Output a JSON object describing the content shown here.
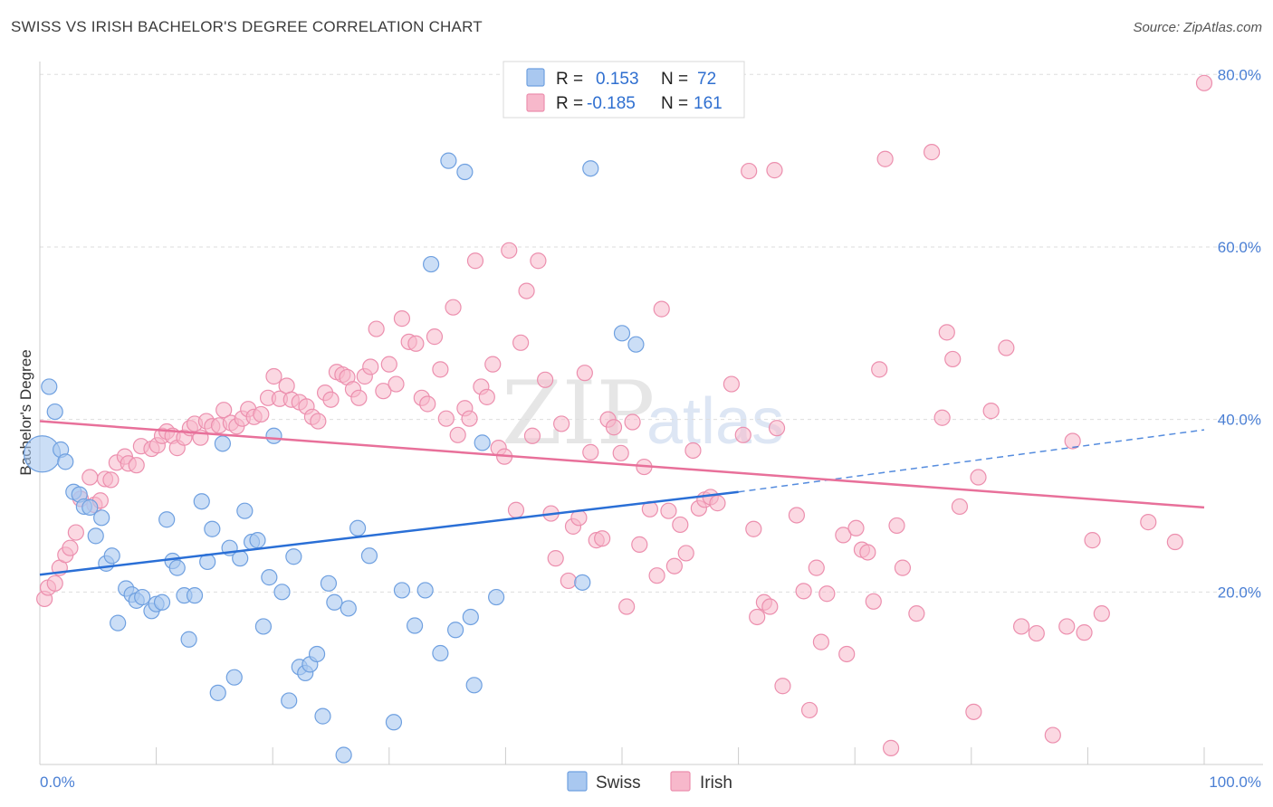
{
  "header": {
    "title": "SWISS VS IRISH BACHELOR'S DEGREE CORRELATION CHART",
    "source": "Source: ZipAtlas.com"
  },
  "watermark": {
    "zip": "ZIP",
    "atlas": "atlas"
  },
  "legend": {
    "r_label": "R =",
    "n_label": "N =",
    "entries": [
      {
        "series": "Swiss",
        "r": "0.153",
        "n": "72"
      },
      {
        "series": "Irish",
        "r": "-0.185",
        "n": "161"
      }
    ]
  },
  "colors": {
    "swiss_fill": "#a9c8f0",
    "swiss_stroke": "#6fa0e0",
    "swiss_line": "#2a6fd6",
    "irish_fill": "#f7b8cb",
    "irish_stroke": "#ec8fae",
    "irish_line": "#e8709a",
    "tick_text": "#4a7fd4",
    "grid": "#dddddd"
  },
  "chart_data": {
    "type": "scatter",
    "title": "SWISS VS IRISH BACHELOR'S DEGREE CORRELATION CHART",
    "xlabel": "",
    "ylabel": "Bachelor's Degree",
    "xlim": [
      0,
      100
    ],
    "ylim": [
      0,
      81.5
    ],
    "x_tick_labels": [
      "0.0%",
      "100.0%"
    ],
    "y_ticks": [
      20,
      40,
      60,
      80
    ],
    "y_tick_labels": [
      "20.0%",
      "40.0%",
      "60.0%",
      "80.0%"
    ],
    "grid": true,
    "legend_position": "top-center",
    "series": [
      {
        "name": "Swiss",
        "r": 0.153,
        "n": 72,
        "trend": {
          "x0": 0,
          "y0": 22.0,
          "x1": 60,
          "y1": 31.6,
          "dashed_to_x": 100,
          "dashed_to_y": 38.8
        },
        "points": [
          [
            0.2,
            36.0,
            3
          ],
          [
            0.8,
            43.8,
            1
          ],
          [
            1.3,
            40.9,
            1
          ],
          [
            1.8,
            36.5,
            1
          ],
          [
            2.2,
            35.1,
            1
          ],
          [
            2.9,
            31.6,
            1
          ],
          [
            3.4,
            31.3,
            1
          ],
          [
            3.8,
            29.9,
            1
          ],
          [
            4.3,
            29.8,
            1
          ],
          [
            4.8,
            26.5,
            1
          ],
          [
            5.3,
            28.6,
            1
          ],
          [
            5.7,
            23.3,
            1
          ],
          [
            6.2,
            24.2,
            1
          ],
          [
            6.7,
            16.4,
            1
          ],
          [
            7.4,
            20.4,
            1
          ],
          [
            7.9,
            19.7,
            1
          ],
          [
            8.3,
            19.0,
            1
          ],
          [
            8.8,
            19.4,
            1
          ],
          [
            9.6,
            17.8,
            1
          ],
          [
            10.0,
            18.6,
            1
          ],
          [
            10.5,
            18.8,
            1
          ],
          [
            10.9,
            28.4,
            1
          ],
          [
            11.4,
            23.6,
            1
          ],
          [
            11.8,
            22.8,
            1
          ],
          [
            12.4,
            19.6,
            1
          ],
          [
            12.8,
            14.5,
            1
          ],
          [
            13.3,
            19.6,
            1
          ],
          [
            13.9,
            30.5,
            1
          ],
          [
            14.4,
            23.5,
            1
          ],
          [
            14.8,
            27.3,
            1
          ],
          [
            15.3,
            8.3,
            1
          ],
          [
            15.7,
            37.2,
            1
          ],
          [
            16.3,
            25.1,
            1
          ],
          [
            16.7,
            10.1,
            1
          ],
          [
            17.2,
            23.9,
            1
          ],
          [
            17.6,
            29.4,
            1
          ],
          [
            18.2,
            25.8,
            1
          ],
          [
            18.7,
            26.0,
            1
          ],
          [
            19.2,
            16.0,
            1
          ],
          [
            19.7,
            21.7,
            1
          ],
          [
            20.1,
            38.1,
            1
          ],
          [
            20.8,
            20.0,
            1
          ],
          [
            21.4,
            7.4,
            1
          ],
          [
            21.8,
            24.1,
            1
          ],
          [
            22.3,
            11.3,
            1
          ],
          [
            22.8,
            10.6,
            1
          ],
          [
            23.2,
            11.6,
            1
          ],
          [
            23.8,
            12.8,
            1
          ],
          [
            24.3,
            5.6,
            1
          ],
          [
            24.8,
            21.0,
            1
          ],
          [
            25.3,
            18.8,
            1
          ],
          [
            26.1,
            1.1,
            1
          ],
          [
            26.5,
            18.1,
            1
          ],
          [
            27.3,
            27.4,
            1
          ],
          [
            28.3,
            24.2,
            1
          ],
          [
            30.4,
            4.9,
            1
          ],
          [
            31.1,
            20.2,
            1
          ],
          [
            32.2,
            16.1,
            1
          ],
          [
            33.1,
            20.2,
            1
          ],
          [
            33.6,
            58.0,
            1
          ],
          [
            34.4,
            12.9,
            1
          ],
          [
            35.1,
            70.0,
            1
          ],
          [
            35.7,
            15.6,
            1
          ],
          [
            36.5,
            68.7,
            1
          ],
          [
            37.0,
            17.1,
            1
          ],
          [
            37.3,
            9.2,
            1
          ],
          [
            38.0,
            37.3,
            1
          ],
          [
            39.2,
            19.4,
            1
          ],
          [
            46.6,
            21.1,
            1
          ],
          [
            47.3,
            69.1,
            1
          ],
          [
            50.0,
            50.0,
            1
          ],
          [
            51.2,
            48.7,
            1
          ]
        ]
      },
      {
        "name": "Irish",
        "r": -0.185,
        "n": 161,
        "trend": {
          "x0": 0,
          "y0": 39.8,
          "x1": 100,
          "y1": 29.8
        },
        "points": [
          [
            0.4,
            19.2
          ],
          [
            0.7,
            20.5
          ],
          [
            1.3,
            21.0
          ],
          [
            1.7,
            22.8
          ],
          [
            2.2,
            24.3
          ],
          [
            2.6,
            25.1
          ],
          [
            3.1,
            26.9
          ],
          [
            3.5,
            30.8
          ],
          [
            4.3,
            33.3
          ],
          [
            4.7,
            30.1
          ],
          [
            5.2,
            30.6
          ],
          [
            5.6,
            33.1
          ],
          [
            6.1,
            33.0
          ],
          [
            6.6,
            35.0
          ],
          [
            7.3,
            35.7
          ],
          [
            7.6,
            34.9
          ],
          [
            8.3,
            34.7
          ],
          [
            8.7,
            36.9
          ],
          [
            9.6,
            36.6
          ],
          [
            10.1,
            37.0
          ],
          [
            10.5,
            38.1
          ],
          [
            10.9,
            38.6
          ],
          [
            11.4,
            38.1
          ],
          [
            11.8,
            36.7
          ],
          [
            12.4,
            37.9
          ],
          [
            12.9,
            39.0
          ],
          [
            13.3,
            39.5
          ],
          [
            13.8,
            37.9
          ],
          [
            14.3,
            39.8
          ],
          [
            14.8,
            39.2
          ],
          [
            15.4,
            39.3
          ],
          [
            15.8,
            41.1
          ],
          [
            16.4,
            39.6
          ],
          [
            16.9,
            39.2
          ],
          [
            17.4,
            40.1
          ],
          [
            17.9,
            41.2
          ],
          [
            18.4,
            40.3
          ],
          [
            19.0,
            40.6
          ],
          [
            19.6,
            42.5
          ],
          [
            20.1,
            45.0
          ],
          [
            20.6,
            42.4
          ],
          [
            21.2,
            43.9
          ],
          [
            21.6,
            42.3
          ],
          [
            22.3,
            42.0
          ],
          [
            22.9,
            41.5
          ],
          [
            23.4,
            40.3
          ],
          [
            23.9,
            39.8
          ],
          [
            24.5,
            43.1
          ],
          [
            25.0,
            42.3
          ],
          [
            25.5,
            45.5
          ],
          [
            26.0,
            45.2
          ],
          [
            26.4,
            44.9
          ],
          [
            26.9,
            43.5
          ],
          [
            27.4,
            42.5
          ],
          [
            27.9,
            45.0
          ],
          [
            28.4,
            46.1
          ],
          [
            28.9,
            50.5
          ],
          [
            29.5,
            43.3
          ],
          [
            30.0,
            46.4
          ],
          [
            30.6,
            44.1
          ],
          [
            31.1,
            51.7
          ],
          [
            31.7,
            49.0
          ],
          [
            32.3,
            48.8
          ],
          [
            32.8,
            42.5
          ],
          [
            33.3,
            41.8
          ],
          [
            33.9,
            49.6
          ],
          [
            34.4,
            45.8
          ],
          [
            34.9,
            40.1
          ],
          [
            35.5,
            53.0
          ],
          [
            35.9,
            38.2
          ],
          [
            36.5,
            41.3
          ],
          [
            36.9,
            40.1
          ],
          [
            37.4,
            58.4
          ],
          [
            37.9,
            43.8
          ],
          [
            38.4,
            42.6
          ],
          [
            38.9,
            46.4
          ],
          [
            39.4,
            36.7
          ],
          [
            39.9,
            35.7
          ],
          [
            40.3,
            59.6
          ],
          [
            40.9,
            29.5
          ],
          [
            41.3,
            48.9
          ],
          [
            41.8,
            54.9
          ],
          [
            42.3,
            38.1
          ],
          [
            42.8,
            58.4
          ],
          [
            43.4,
            44.6
          ],
          [
            43.9,
            29.1
          ],
          [
            44.3,
            23.9
          ],
          [
            44.8,
            39.5
          ],
          [
            45.4,
            21.3
          ],
          [
            45.8,
            27.6
          ],
          [
            46.3,
            28.6
          ],
          [
            46.8,
            45.4
          ],
          [
            47.3,
            36.2
          ],
          [
            47.8,
            26.0
          ],
          [
            48.3,
            26.2
          ],
          [
            48.8,
            40.0
          ],
          [
            49.3,
            39.1
          ],
          [
            49.9,
            36.1
          ],
          [
            50.4,
            18.3
          ],
          [
            50.9,
            39.7
          ],
          [
            51.5,
            25.5
          ],
          [
            51.9,
            34.5
          ],
          [
            52.4,
            29.6
          ],
          [
            53.0,
            21.9
          ],
          [
            53.4,
            52.8
          ],
          [
            54.0,
            29.4
          ],
          [
            54.5,
            23.0
          ],
          [
            55.0,
            27.8
          ],
          [
            55.5,
            24.5
          ],
          [
            56.1,
            36.4
          ],
          [
            56.6,
            29.7
          ],
          [
            57.1,
            30.7
          ],
          [
            57.6,
            31.0
          ],
          [
            58.2,
            30.3
          ],
          [
            59.4,
            44.1
          ],
          [
            60.4,
            38.2
          ],
          [
            60.9,
            68.8
          ],
          [
            61.3,
            27.3
          ],
          [
            61.6,
            17.1
          ],
          [
            62.2,
            18.8
          ],
          [
            62.7,
            18.3
          ],
          [
            63.1,
            68.9
          ],
          [
            63.3,
            39.0
          ],
          [
            63.8,
            9.1
          ],
          [
            65.0,
            28.9
          ],
          [
            65.6,
            20.1
          ],
          [
            66.1,
            6.3
          ],
          [
            66.7,
            22.8
          ],
          [
            67.1,
            14.2
          ],
          [
            67.6,
            19.8
          ],
          [
            69.0,
            26.6
          ],
          [
            69.3,
            12.8
          ],
          [
            70.1,
            27.4
          ],
          [
            70.6,
            24.9
          ],
          [
            71.1,
            24.6
          ],
          [
            71.6,
            18.9
          ],
          [
            72.1,
            45.8
          ],
          [
            72.6,
            70.2
          ],
          [
            73.1,
            1.9
          ],
          [
            73.6,
            27.7
          ],
          [
            74.1,
            22.8
          ],
          [
            75.3,
            17.5
          ],
          [
            76.6,
            71.0
          ],
          [
            77.5,
            40.2
          ],
          [
            77.9,
            50.1
          ],
          [
            78.4,
            47.0
          ],
          [
            79.0,
            29.9
          ],
          [
            80.2,
            6.1
          ],
          [
            80.6,
            33.3
          ],
          [
            81.7,
            41.0
          ],
          [
            83.0,
            48.3
          ],
          [
            84.3,
            16.0
          ],
          [
            85.6,
            15.2
          ],
          [
            87.0,
            3.4
          ],
          [
            88.2,
            16.0
          ],
          [
            88.7,
            37.5
          ],
          [
            89.7,
            15.3
          ],
          [
            90.4,
            26.0
          ],
          [
            91.2,
            17.5
          ],
          [
            95.2,
            28.1
          ],
          [
            97.5,
            25.8
          ],
          [
            100.0,
            79.0
          ]
        ]
      }
    ]
  }
}
